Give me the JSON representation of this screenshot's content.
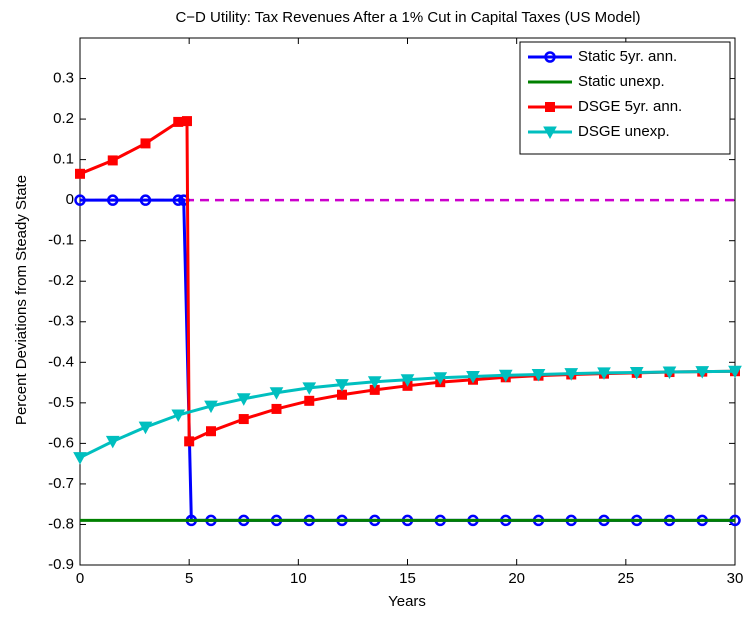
{
  "chart_data": {
    "type": "line",
    "title": "C−D Utility: Tax Revenues After a 1% Cut in Capital Taxes (US Model)",
    "x_label": "Years",
    "y_label": "Percent Deviations from Steady State",
    "xlim": [
      0,
      30
    ],
    "xticks": [
      0,
      5,
      10,
      15,
      20,
      25,
      30
    ],
    "ylim": [
      -0.9,
      0.4
    ],
    "yticks": [
      -0.9,
      -0.8,
      -0.7,
      -0.6,
      -0.5,
      -0.4,
      -0.3,
      -0.2,
      -0.1,
      0,
      0.1,
      0.2,
      0.3
    ],
    "reference_line": {
      "value": 0,
      "color": "#cc00cc"
    },
    "legend": "upper right",
    "series": [
      {
        "name": "Static 5yr. ann.",
        "color": "#0000ff",
        "marker": "circle",
        "x": [
          0,
          1.5,
          3,
          4.5,
          4.75,
          5.1,
          6,
          7.5,
          9,
          10.5,
          12,
          13.5,
          15,
          16.5,
          18,
          19.5,
          21,
          22.5,
          24,
          25.5,
          27,
          28.5,
          30
        ],
        "values": [
          0,
          0,
          0,
          0,
          0,
          -0.79,
          -0.79,
          -0.79,
          -0.79,
          -0.79,
          -0.79,
          -0.79,
          -0.79,
          -0.79,
          -0.79,
          -0.79,
          -0.79,
          -0.79,
          -0.79,
          -0.79,
          -0.79,
          -0.79,
          -0.79
        ]
      },
      {
        "name": "Static unexp.",
        "color": "#008000",
        "marker": null,
        "x": [
          0,
          30
        ],
        "values": [
          -0.79,
          -0.79
        ]
      },
      {
        "name": "DSGE 5yr. ann.",
        "color": "#ff0000",
        "marker": "square",
        "x": [
          0,
          1.5,
          3,
          4.5,
          4.9,
          5,
          6,
          7.5,
          9,
          10.5,
          12,
          13.5,
          15,
          16.5,
          18,
          19.5,
          21,
          22.5,
          24,
          25.5,
          27,
          28.5,
          30
        ],
        "values": [
          0.065,
          0.098,
          0.14,
          0.193,
          0.195,
          -0.595,
          -0.57,
          -0.54,
          -0.515,
          -0.495,
          -0.48,
          -0.468,
          -0.458,
          -0.449,
          -0.443,
          -0.437,
          -0.433,
          -0.43,
          -0.428,
          -0.426,
          -0.424,
          -0.423,
          -0.422
        ]
      },
      {
        "name": "DSGE unexp.",
        "color": "#00bfbf",
        "marker": "triangle-down",
        "x": [
          0,
          1.5,
          3,
          4.5,
          6,
          7.5,
          9,
          10.5,
          12,
          13.5,
          15,
          16.5,
          18,
          19.5,
          21,
          22.5,
          24,
          25.5,
          27,
          28.5,
          30
        ],
        "values": [
          -0.635,
          -0.595,
          -0.56,
          -0.53,
          -0.508,
          -0.49,
          -0.475,
          -0.463,
          -0.455,
          -0.448,
          -0.443,
          -0.438,
          -0.435,
          -0.432,
          -0.43,
          -0.428,
          -0.426,
          -0.425,
          -0.424,
          -0.423,
          -0.422
        ]
      }
    ]
  }
}
